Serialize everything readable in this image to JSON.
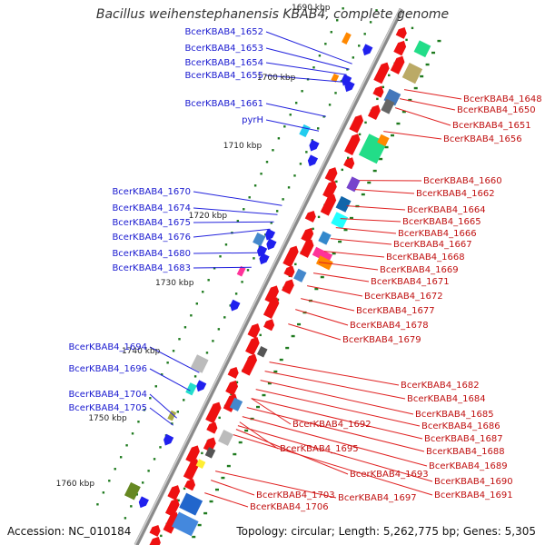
{
  "title": "Bacillus weihenstephanensis KBAB4, complete genome",
  "footer": {
    "accession": "Accession: NC_010184",
    "info": "Topology: circular; Length: 5,262,775 bp; Genes: 5,305"
  },
  "colors": {
    "forward": "#2020ee",
    "reverse": "#ee1111",
    "backbone": "#999999",
    "ticks": "#1e7a1e"
  },
  "scale_ticks": [
    "1690 kbp",
    "1700 kbp",
    "1710 kbp",
    "1720 kbp",
    "1730 kbp",
    "1740 kbp",
    "1750 kbp",
    "1760 kbp"
  ],
  "left_labels": [
    "BcerKBAB4_1652",
    "BcerKBAB4_1653",
    "BcerKBAB4_1654",
    "BcerKBAB4_1655",
    "BcerKBAB4_1661",
    "pyrH",
    "BcerKBAB4_1670",
    "BcerKBAB4_1674",
    "BcerKBAB4_1675",
    "BcerKBAB4_1676",
    "BcerKBAB4_1680",
    "BcerKBAB4_1683",
    "BcerKBAB4_1694",
    "BcerKBAB4_1696",
    "BcerKBAB4_1704",
    "BcerKBAB4_1705"
  ],
  "right_labels": [
    "BcerKBAB4_1648",
    "BcerKBAB4_1650",
    "BcerKBAB4_1651",
    "BcerKBAB4_1656",
    "BcerKBAB4_1660",
    "BcerKBAB4_1662",
    "BcerKBAB4_1664",
    "BcerKBAB4_1665",
    "BcerKBAB4_1666",
    "BcerKBAB4_1667",
    "BcerKBAB4_1668",
    "BcerKBAB4_1669",
    "BcerKBAB4_1671",
    "BcerKBAB4_1672",
    "BcerKBAB4_1677",
    "BcerKBAB4_1678",
    "BcerKBAB4_1679",
    "BcerKBAB4_1682",
    "BcerKBAB4_1684",
    "BcerKBAB4_1685",
    "BcerKBAB4_1686",
    "BcerKBAB4_1687",
    "BcerKBAB4_1688",
    "BcerKBAB4_1689",
    "BcerKBAB4_1690",
    "BcerKBAB4_1691",
    "BcerKBAB4_1692",
    "BcerKBAB4_1693",
    "BcerKBAB4_1695",
    "BcerKBAB4_1697",
    "BcerKBAB4_1703",
    "BcerKBAB4_1706"
  ]
}
